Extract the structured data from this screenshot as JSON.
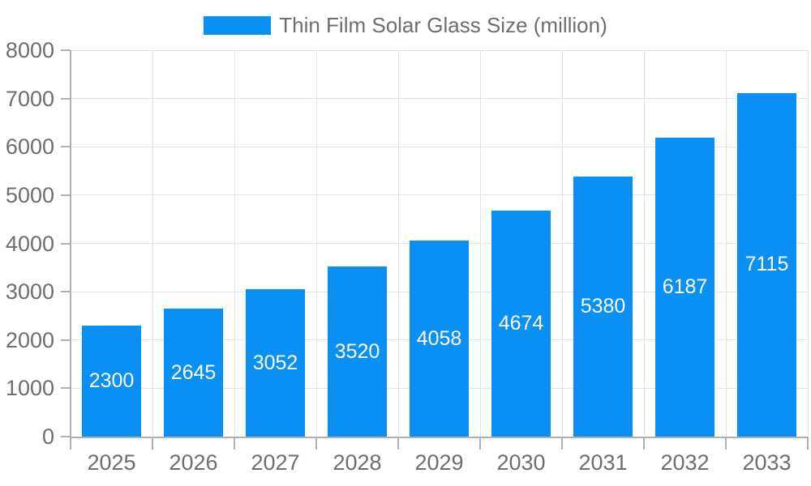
{
  "legend": {
    "label": "Thin Film Solar Glass Size (million)"
  },
  "chart_data": {
    "type": "bar",
    "title": "Thin Film Solar Glass Size (million)",
    "categories": [
      "2025",
      "2026",
      "2027",
      "2028",
      "2029",
      "2030",
      "2031",
      "2032",
      "2033"
    ],
    "values": [
      2300,
      2645,
      3052,
      3520,
      4058,
      4674,
      5380,
      6187,
      7115
    ],
    "value_labels": [
      "2300",
      "2645",
      "3052",
      "3520",
      "4058",
      "4674",
      "5380",
      "6187",
      "7115"
    ],
    "ytick_labels": [
      "0",
      "1000",
      "2000",
      "3000",
      "4000",
      "5000",
      "6000",
      "7000",
      "8000"
    ],
    "xlabel": "",
    "ylabel": "",
    "ylim": [
      0,
      8000
    ],
    "ytick_step": 1000,
    "grid": true,
    "legend_position": "top-center",
    "bar_color": "#0a90f5",
    "value_label_color": "#ffffff",
    "axis_text_color": "#6e6e6e",
    "grid_color": "#e3e3e3",
    "axis_line_color": "#b0b0b0"
  }
}
